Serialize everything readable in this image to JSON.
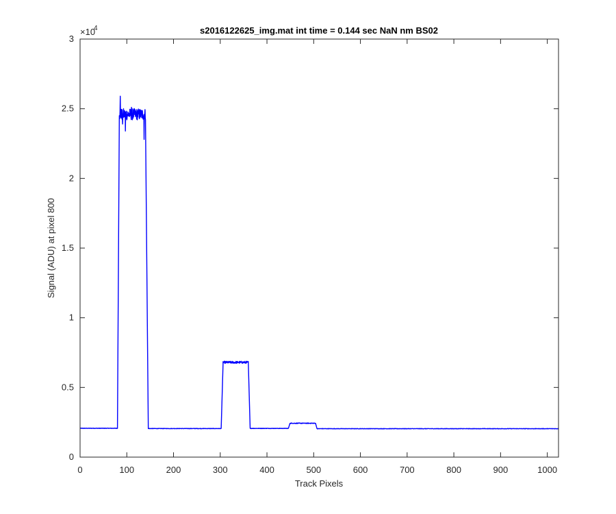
{
  "chart_data": {
    "type": "line",
    "title": "s2016122625_img.mat int time = 0.144 sec  NaN nm BS02",
    "xlabel": "Track Pixels",
    "ylabel": "Signal (ADU) at pixel 800",
    "xlim": [
      0,
      1024
    ],
    "ylim": [
      0,
      30000
    ],
    "x_ticks": [
      0,
      100,
      200,
      300,
      400,
      500,
      600,
      700,
      800,
      900,
      1000
    ],
    "x_tick_labels": [
      "0",
      "100",
      "200",
      "300",
      "400",
      "500",
      "600",
      "700",
      "800",
      "900",
      "1000"
    ],
    "y_ticks": [
      0,
      5000,
      10000,
      15000,
      20000,
      25000,
      30000
    ],
    "y_tick_labels": [
      "0",
      "0.5",
      "1",
      "1.5",
      "2",
      "2.5",
      "3"
    ],
    "y_exponent_base": "×10",
    "y_exponent_power": "4",
    "grid": false,
    "series": [
      {
        "color": "#0000ff",
        "segments": [
          {
            "x0": 0,
            "x1": 80,
            "level": 2070,
            "noise": 15
          },
          {
            "x0": 80,
            "x1": 84,
            "ramp_to": 24500
          },
          {
            "x0": 84,
            "x1": 140,
            "level": 24600,
            "noise": 420
          },
          {
            "x0": 140,
            "x1": 146,
            "ramp_to": 2090
          },
          {
            "x0": 146,
            "x1": 302,
            "level": 2050,
            "noise": 15
          },
          {
            "x0": 302,
            "x1": 306,
            "ramp_to": 6650
          },
          {
            "x0": 306,
            "x1": 360,
            "level": 6800,
            "noise": 80
          },
          {
            "x0": 360,
            "x1": 364,
            "ramp_to": 2080
          },
          {
            "x0": 364,
            "x1": 446,
            "level": 2060,
            "noise": 15
          },
          {
            "x0": 446,
            "x1": 449,
            "ramp_to": 2400
          },
          {
            "x0": 449,
            "x1": 504,
            "level": 2430,
            "noise": 25
          },
          {
            "x0": 504,
            "x1": 507,
            "ramp_to": 2050
          },
          {
            "x0": 507,
            "x1": 1024,
            "level": 2040,
            "noise": 15
          }
        ],
        "highlights": [
          {
            "x": 86,
            "y": 25900
          },
          {
            "x": 91,
            "y": 23900
          },
          {
            "x": 97,
            "y": 23400
          },
          {
            "x": 110,
            "y": 25100
          },
          {
            "x": 137,
            "y": 22800
          }
        ]
      }
    ]
  }
}
